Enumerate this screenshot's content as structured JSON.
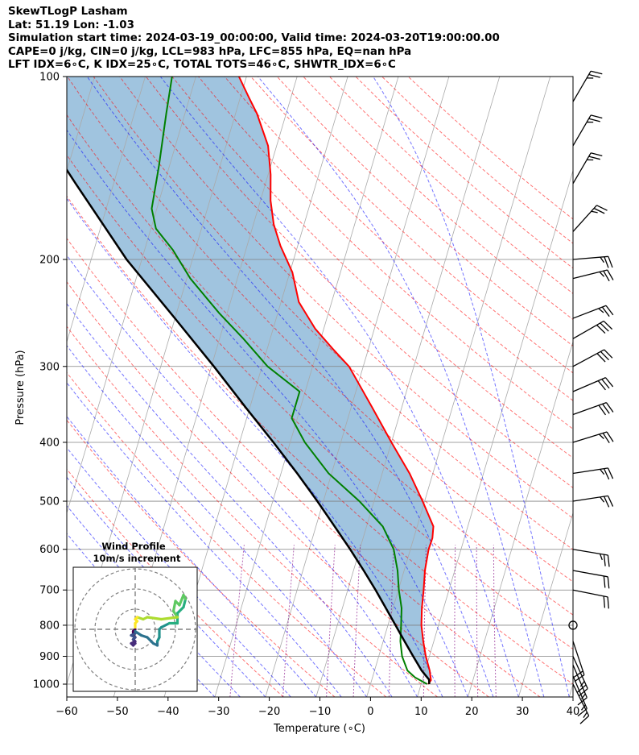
{
  "header": {
    "line1": "SkewTLogP Lasham",
    "line2": "Lat: 51.19   Lon: -1.03",
    "line3": "Simulation start time: 2024-03-19_00:00:00, Valid time: 2024-03-20T19:00:00.00",
    "line4": "CAPE=0 j/kg, CIN=0 j/kg, LCL=983 hPa, LFC=855 hPa, EQ=nan hPa",
    "line5": "LFT IDX=6$^\\circ$C, K IDX=25$^\\circ$C, TOTAL TOTS=46$^\\circ$C, SHWTR_IDX=6$^\\circ$C"
  },
  "header_display": {
    "line5": "LFT IDX=6∘C, K IDX=25∘C, TOTAL TOTS=46∘C, SHWTR_IDX=6∘C"
  },
  "colors": {
    "temperature": "#ff0000",
    "dewpoint": "#008000",
    "parcel": "#000000",
    "cape_fill": "#a0c4df",
    "dry_adiabat": "#ff0000",
    "moist_adiabat": "#0000ff",
    "mixing_ratio": "#800080",
    "isotherm": "#808080"
  },
  "chart_data": [
    {
      "type": "line",
      "subtype": "skew-t log-p",
      "xlabel": "Temperature ($^\\circ$C)",
      "xlabel_display": "Temperature (∘C)",
      "ylabel": "Pressure (hPa)",
      "xlim": [
        -60,
        40
      ],
      "ylim": [
        1050,
        100
      ],
      "y_scale": "log",
      "x_ticks": [
        "−60",
        "−50",
        "−40",
        "−30",
        "−20",
        "−10",
        "0",
        "10",
        "20",
        "30",
        "40"
      ],
      "y_ticks": [
        "100",
        "200",
        "300",
        "400",
        "500",
        "600",
        "700",
        "800",
        "900",
        "1000"
      ],
      "grid": true,
      "series": [
        {
          "role": "temperature",
          "points": [
            [
              1000,
              11.4
            ],
            [
              985,
              11.7
            ],
            [
              950,
              10.9
            ],
            [
              900,
              9.3
            ],
            [
              850,
              7.9
            ],
            [
              800,
              6.6
            ],
            [
              750,
              5.7
            ],
            [
              700,
              5.0
            ],
            [
              650,
              4.1
            ],
            [
              600,
              3.6
            ],
            [
              575,
              3.7
            ],
            [
              550,
              3.2
            ],
            [
              500,
              -0.4
            ],
            [
              450,
              -4.6
            ],
            [
              400,
              -10.0
            ],
            [
              350,
              -15.9
            ],
            [
              300,
              -22.8
            ],
            [
              280,
              -27.2
            ],
            [
              260,
              -31.7
            ],
            [
              235,
              -36.5
            ],
            [
              210,
              -39.5
            ],
            [
              190,
              -43.4
            ],
            [
              175,
              -46.0
            ],
            [
              160,
              -48.0
            ],
            [
              145,
              -49.5
            ],
            [
              130,
              -51.7
            ],
            [
              115,
              -55.8
            ],
            [
              108,
              -58.4
            ],
            [
              100,
              -61.5
            ]
          ]
        },
        {
          "role": "dewpoint",
          "points": [
            [
              1000,
              11.2
            ],
            [
              975,
              8.4
            ],
            [
              950,
              6.5
            ],
            [
              900,
              4.6
            ],
            [
              850,
              3.4
            ],
            [
              800,
              2.6
            ],
            [
              750,
              1.7
            ],
            [
              700,
              0.1
            ],
            [
              650,
              -1.3
            ],
            [
              600,
              -3.3
            ],
            [
              550,
              -6.8
            ],
            [
              500,
              -12.9
            ],
            [
              450,
              -20.6
            ],
            [
              400,
              -27.1
            ],
            [
              365,
              -31.1
            ],
            [
              330,
              -31.1
            ],
            [
              300,
              -38.9
            ],
            [
              270,
              -45.3
            ],
            [
              245,
              -51.6
            ],
            [
              215,
              -59.3
            ],
            [
              193,
              -64.4
            ],
            [
              178,
              -69.0
            ],
            [
              165,
              -71.0
            ],
            [
              140,
              -72.1
            ],
            [
              115,
              -73.7
            ],
            [
              100,
              -74.7
            ]
          ]
        },
        {
          "role": "parcel",
          "points": [
            [
              1000,
              11.6
            ],
            [
              983,
              11.3
            ],
            [
              950,
              9.3
            ],
            [
              900,
              6.8
            ],
            [
              850,
              4.2
            ],
            [
              800,
              1.5
            ],
            [
              750,
              -1.4
            ],
            [
              700,
              -4.5
            ],
            [
              650,
              -8.0
            ],
            [
              600,
              -11.9
            ],
            [
              550,
              -16.3
            ],
            [
              500,
              -21.2
            ],
            [
              450,
              -26.8
            ],
            [
              400,
              -33.3
            ],
            [
              350,
              -40.9
            ],
            [
              300,
              -49.5
            ],
            [
              250,
              -60.0
            ],
            [
              200,
              -73.0
            ],
            [
              150,
              -87.5
            ],
            [
              125,
              -96.5
            ],
            [
              100,
              -107.5
            ]
          ]
        }
      ],
      "cape_fill": true,
      "wind_barbs": [
        {
          "p": 1000,
          "u": -4,
          "v": 8
        },
        {
          "p": 970,
          "u": -3,
          "v": 7
        },
        {
          "p": 930,
          "u": -3,
          "v": 7
        },
        {
          "p": 900,
          "u": -5,
          "v": 11
        },
        {
          "p": 850,
          "u": -3,
          "v": 9
        },
        {
          "p": 800,
          "u": 0,
          "v": 0
        },
        {
          "p": 700,
          "u": -10,
          "v": 2
        },
        {
          "p": 650,
          "u": -11,
          "v": 2
        },
        {
          "p": 600,
          "u": -12,
          "v": 2
        },
        {
          "p": 500,
          "u": -13,
          "v": -2
        },
        {
          "p": 450,
          "u": -13,
          "v": -2
        },
        {
          "p": 400,
          "u": -13,
          "v": -4
        },
        {
          "p": 360,
          "u": -14,
          "v": -5
        },
        {
          "p": 330,
          "u": -14,
          "v": -6
        },
        {
          "p": 300,
          "u": -13,
          "v": -7
        },
        {
          "p": 270,
          "u": -14,
          "v": -8
        },
        {
          "p": 250,
          "u": -13,
          "v": -5
        },
        {
          "p": 215,
          "u": -12,
          "v": -3
        },
        {
          "p": 200,
          "u": -12,
          "v": -1
        },
        {
          "p": 180,
          "u": -9,
          "v": -10
        },
        {
          "p": 150,
          "u": -7,
          "v": -12
        },
        {
          "p": 130,
          "u": -7,
          "v": -12
        },
        {
          "p": 110,
          "u": -7,
          "v": -12
        }
      ]
    },
    {
      "type": "line",
      "subtype": "hodograph",
      "title": "Wind Profile",
      "subtitle": "10m/s increment",
      "ring_increment": 10,
      "points": [
        [
          0,
          0
        ],
        [
          -1,
          -1
        ],
        [
          -1,
          -3
        ],
        [
          0,
          -4
        ],
        [
          -1,
          -5
        ],
        [
          0,
          -7
        ],
        [
          -1,
          -8
        ],
        [
          -2,
          -7
        ],
        [
          0,
          -6
        ],
        [
          -1,
          -5
        ],
        [
          0,
          -4
        ],
        [
          -2,
          -3
        ],
        [
          0,
          -2
        ],
        [
          0,
          -1
        ],
        [
          3,
          -3
        ],
        [
          6,
          -4
        ],
        [
          9,
          -7
        ],
        [
          11,
          -8
        ],
        [
          11,
          -6
        ],
        [
          12,
          -4
        ],
        [
          12,
          0
        ],
        [
          13,
          1
        ],
        [
          17,
          3
        ],
        [
          21,
          3
        ],
        [
          21,
          8
        ],
        [
          24,
          11
        ],
        [
          25,
          15
        ],
        [
          24,
          17
        ],
        [
          22,
          12
        ],
        [
          20,
          14
        ],
        [
          19,
          9
        ],
        [
          21,
          6
        ],
        [
          13,
          5
        ],
        [
          6,
          6
        ],
        [
          4,
          5
        ],
        [
          1,
          6
        ],
        [
          0,
          5
        ],
        [
          1,
          4
        ],
        [
          0,
          3
        ],
        [
          0,
          1
        ]
      ]
    }
  ]
}
